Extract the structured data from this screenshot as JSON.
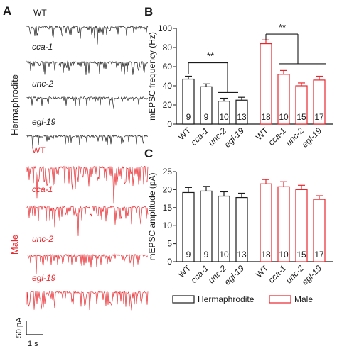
{
  "panel_labels": {
    "a": "A",
    "b": "B",
    "c": "C"
  },
  "traces": {
    "hermaphrodite_label": "Hermaphrodite",
    "male_label": "Male",
    "hermaphrodite": [
      "WT",
      "cca-1",
      "unc-2",
      "egl-19"
    ],
    "male": [
      "WT",
      "cca-1",
      "unc-2",
      "egl-19"
    ],
    "scale_y": "50 pA",
    "scale_x": "1 s"
  },
  "colors": {
    "hermaphrodite": "#1a1a1a",
    "male": "#e8262b"
  },
  "legend": {
    "hermaphrodite": "Hermaphrodite",
    "male": "Male"
  },
  "significance": {
    "b_left": "**",
    "b_right": "**"
  },
  "chart_data": [
    {
      "type": "bar",
      "panel": "B",
      "ylabel": "mEPSC frequency (Hz)",
      "ylim": [
        0,
        100
      ],
      "yticks": [
        0,
        20,
        40,
        60,
        80,
        100
      ],
      "categories": [
        "WT",
        "cca-1",
        "unc-2",
        "egl-19"
      ],
      "series": [
        {
          "name": "Hermaphrodite",
          "values": [
            47,
            39,
            24,
            25
          ],
          "errors": [
            3,
            3,
            3,
            3
          ],
          "n": [
            9,
            9,
            10,
            13
          ]
        },
        {
          "name": "Male",
          "values": [
            84,
            52,
            40,
            46
          ],
          "errors": [
            4,
            4,
            3,
            4
          ],
          "n": [
            18,
            10,
            15,
            17
          ]
        }
      ]
    },
    {
      "type": "bar",
      "panel": "C",
      "ylabel": "mEPSC amplitude (pA)",
      "ylim": [
        0,
        25
      ],
      "yticks": [
        0,
        5,
        10,
        15,
        20,
        25
      ],
      "categories": [
        "WT",
        "cca-1",
        "unc-2",
        "egl-19"
      ],
      "series": [
        {
          "name": "Hermaphrodite",
          "values": [
            19.2,
            19.6,
            18.2,
            17.8
          ],
          "errors": [
            1.4,
            1.3,
            1.2,
            1.2
          ],
          "n": [
            9,
            9,
            10,
            13
          ]
        },
        {
          "name": "Male",
          "values": [
            21.6,
            20.8,
            20.0,
            17.3
          ],
          "errors": [
            1.2,
            1.4,
            1.2,
            1.0
          ],
          "n": [
            18,
            10,
            15,
            17
          ]
        }
      ]
    }
  ]
}
